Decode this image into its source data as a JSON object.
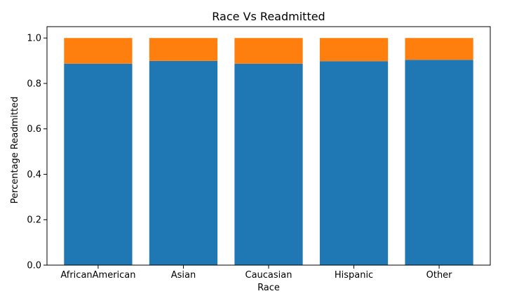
{
  "chart_data": {
    "type": "bar",
    "stacked": true,
    "title": "Race Vs Readmitted",
    "xlabel": "Race",
    "ylabel": "Percentage Readmitted",
    "categories": [
      "AfricanAmerican",
      "Asian",
      "Caucasian",
      "Hispanic",
      "Other"
    ],
    "series": [
      {
        "color": "#1f77b4",
        "values": [
          0.887,
          0.899,
          0.887,
          0.898,
          0.904
        ]
      },
      {
        "color": "#ff7f0e",
        "values": [
          0.113,
          0.101,
          0.113,
          0.102,
          0.096
        ]
      }
    ],
    "ylim": [
      0,
      1.05
    ],
    "yticks": [
      "0.0",
      "0.2",
      "0.4",
      "0.6",
      "0.8",
      "1.0"
    ],
    "grid": false,
    "legend": false
  }
}
